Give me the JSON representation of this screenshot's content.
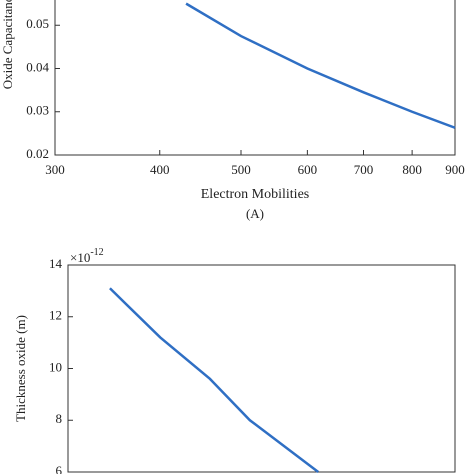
{
  "chart_data": [
    {
      "type": "line",
      "caption": "(A)",
      "x_label": "Electron Mobilities",
      "y_label": "Oxide Capacitance",
      "xlog": true,
      "xlim": [
        300,
        900
      ],
      "xticks": [
        300,
        400,
        500,
        600,
        700,
        800,
        900
      ],
      "ylim": [
        0.02,
        0.06
      ],
      "yticks": [
        0.02,
        0.03,
        0.04,
        0.05
      ],
      "x": [
        430,
        500,
        600,
        700,
        800,
        900
      ],
      "series": [
        {
          "color": "#2f6fc4",
          "values": [
            0.055,
            0.0475,
            0.04,
            0.0345,
            0.03,
            0.0263
          ]
        }
      ]
    },
    {
      "type": "line",
      "y_label": "Thickness oxide (m)",
      "exponent_base": "×10",
      "exponent_power": "-12",
      "xlog": false,
      "xlim": [
        300,
        900
      ],
      "ylim": [
        6,
        14
      ],
      "yticks": [
        6,
        8,
        10,
        12,
        14
      ],
      "x": [
        365,
        443,
        520,
        582,
        688
      ],
      "series": [
        {
          "color": "#2f6fc4",
          "values": [
            13.1,
            11.2,
            9.6,
            8.0,
            6.0
          ]
        }
      ]
    }
  ]
}
